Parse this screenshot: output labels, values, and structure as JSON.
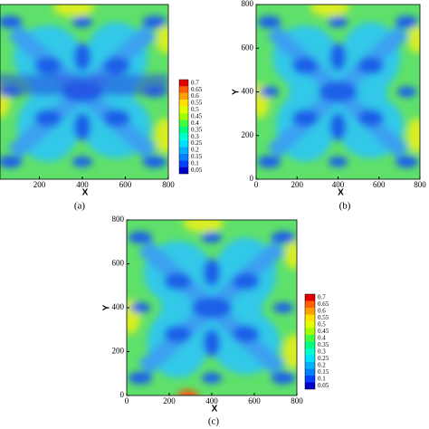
{
  "chart_data": [
    {
      "type": "contour",
      "caption": "(a)",
      "xlabel": "X",
      "xlim": [
        0,
        800
      ],
      "ylim": [
        0,
        800
      ],
      "xticks": [
        200,
        400,
        600,
        800
      ],
      "colorbar": {
        "levels": [
          0.7,
          0.65,
          0.6,
          0.55,
          0.5,
          0.45,
          0.4,
          0.35,
          0.3,
          0.25,
          0.2,
          0.15,
          0.1,
          0.05
        ],
        "colors": [
          "#e00000",
          "#ff6000",
          "#ffa000",
          "#ffe000",
          "#e0ff00",
          "#a0ff00",
          "#40ff40",
          "#00ff80",
          "#00ffd0",
          "#00e0ff",
          "#00b0ff",
          "#0080ff",
          "#0040ff",
          "#0000c8"
        ]
      }
    },
    {
      "type": "contour",
      "caption": "(b)",
      "xlabel": "X",
      "ylabel": "Y",
      "xlim": [
        0,
        800
      ],
      "ylim": [
        0,
        800
      ],
      "xticks": [
        0,
        200,
        400,
        600,
        800
      ],
      "yticks": [
        0,
        200,
        400,
        600,
        800
      ]
    },
    {
      "type": "contour",
      "caption": "(c)",
      "xlabel": "X",
      "ylabel": "Y",
      "xlim": [
        0,
        800
      ],
      "ylim": [
        0,
        800
      ],
      "xticks": [
        0,
        200,
        400,
        600,
        800
      ],
      "yticks": [
        0,
        200,
        400,
        600,
        800
      ],
      "colorbar": {
        "levels": [
          0.7,
          0.65,
          0.6,
          0.55,
          0.5,
          0.45,
          0.4,
          0.35,
          0.3,
          0.25,
          0.2,
          0.15,
          0.1,
          0.05
        ],
        "colors": [
          "#e00000",
          "#ff6000",
          "#ffa000",
          "#ffe000",
          "#e0ff00",
          "#a0ff00",
          "#40ff40",
          "#00ff80",
          "#00ffd0",
          "#00e0ff",
          "#00b0ff",
          "#0080ff",
          "#0040ff",
          "#0000c8"
        ]
      }
    }
  ]
}
